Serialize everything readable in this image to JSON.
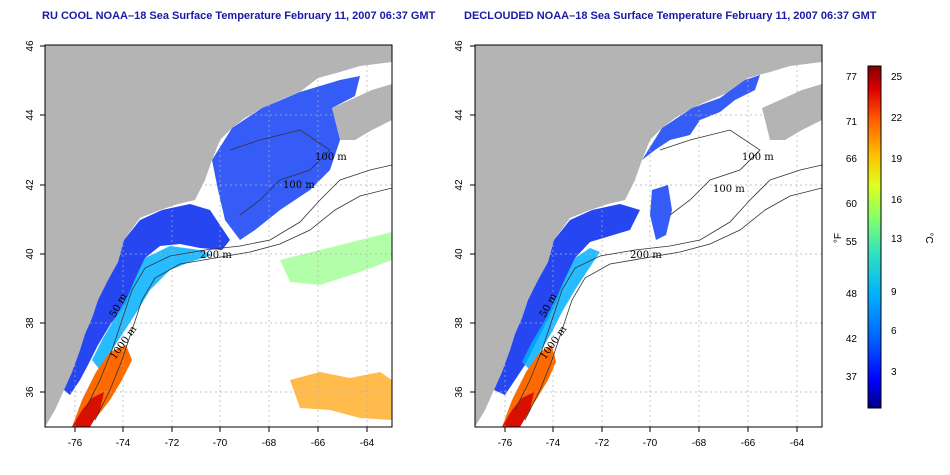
{
  "panels": [
    {
      "title": "RU COOL NOAA–18 Sea Surface Temperature February 11, 2007 06:37 GMT",
      "contour_labels": [
        "50 m",
        "100 m",
        "100 m",
        "200 m",
        "1000 m"
      ]
    },
    {
      "title": "DECLOUDED NOAA–18 Sea Surface Temperature February 11, 2007 06:37 GMT",
      "contour_labels": [
        "50 m",
        "100 m",
        "100 m",
        "200 m",
        "1000 m"
      ]
    }
  ],
  "axes": {
    "lon_ticks": [
      "-76",
      "-74",
      "-72",
      "-70",
      "-68",
      "-66",
      "-64"
    ],
    "lat_ticks": [
      "46",
      "44",
      "42",
      "40",
      "38",
      "36"
    ],
    "lon_range": [
      -77,
      -63
    ],
    "lat_range": [
      35,
      46
    ]
  },
  "colorbar": {
    "unit_left": "°F",
    "unit_right": "°C",
    "fahrenheit_ticks": [
      "77",
      "71",
      "66",
      "60",
      "55",
      "48",
      "42",
      "37"
    ],
    "celsius_ticks": [
      "25",
      "22",
      "19",
      "16",
      "13",
      "9",
      "6",
      "3"
    ],
    "colors": [
      "#000080",
      "#0000ff",
      "#0060ff",
      "#00b0ff",
      "#30e0c0",
      "#80ff70",
      "#e0ff20",
      "#ffc000",
      "#ff6000",
      "#e00000",
      "#800000"
    ]
  },
  "colors": {
    "land": "#b4b4b4",
    "title": "#1a1aa6",
    "grid": "#b0b0b0"
  }
}
